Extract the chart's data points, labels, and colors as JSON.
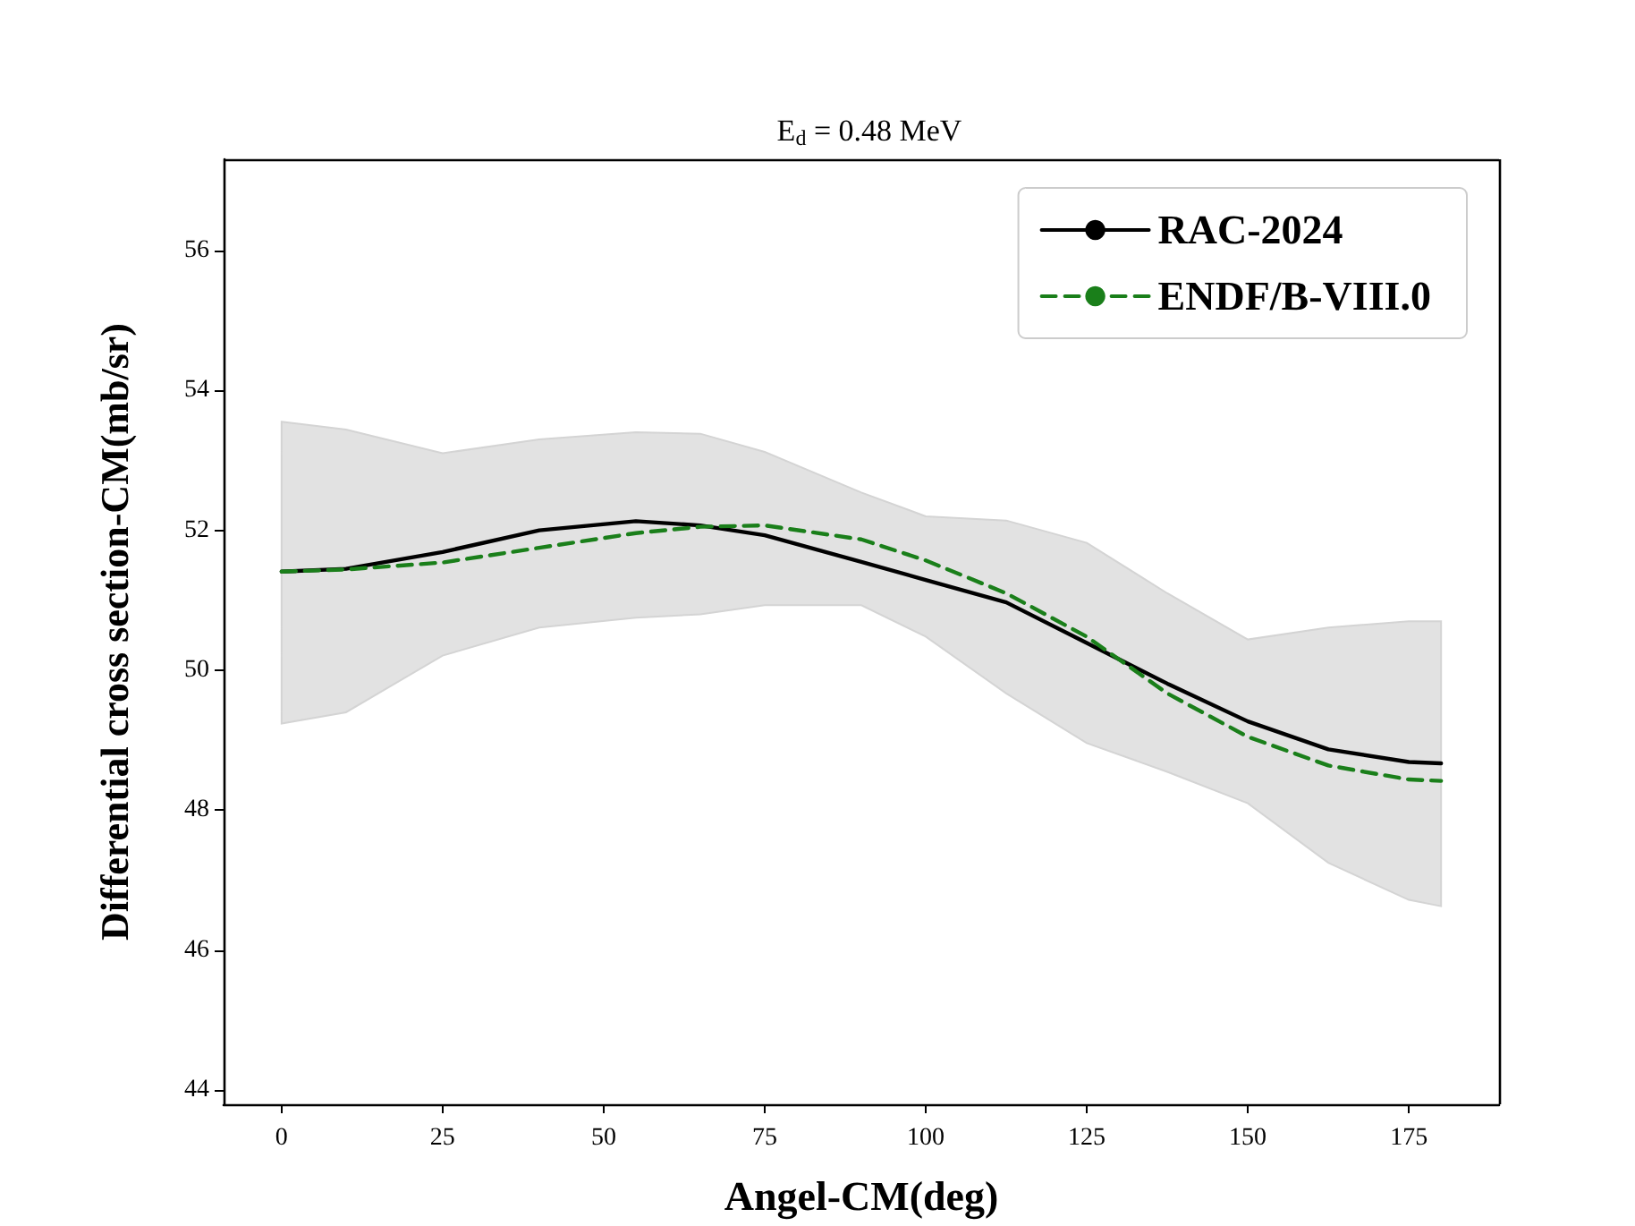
{
  "chart_data": {
    "type": "line",
    "title": "E$_{d}$ = 0.48 MeV",
    "xlabel": "Angel-CM(deg)",
    "ylabel": "Differential cross section-CM(mb/sr)",
    "x": [
      0,
      10,
      25,
      40,
      55,
      65,
      75,
      90,
      100,
      112.5,
      125,
      137.5,
      150,
      162.5,
      175,
      180
    ],
    "series": [
      {
        "name": "RAC-2024",
        "color": "#000000",
        "line_style": "solid",
        "values": [
          51.41,
          51.45,
          51.69,
          52.0,
          52.13,
          52.07,
          51.93,
          51.55,
          51.29,
          50.97,
          50.39,
          49.81,
          49.27,
          48.87,
          48.69,
          48.67
        ],
        "lower": [
          49.24,
          49.4,
          50.21,
          50.61,
          50.75,
          50.8,
          50.93,
          50.93,
          50.48,
          49.67,
          48.96,
          48.55,
          48.1,
          47.25,
          46.72,
          46.63
        ],
        "upper": [
          53.55,
          53.44,
          53.1,
          53.3,
          53.4,
          53.38,
          53.12,
          52.54,
          52.2,
          52.14,
          51.82,
          51.1,
          50.44,
          50.61,
          50.7,
          50.7
        ]
      },
      {
        "name": "ENDF/B-VIII.0",
        "color": "#1a7f1a",
        "line_style": "dashed",
        "values": [
          51.41,
          51.44,
          51.54,
          51.75,
          51.96,
          52.05,
          52.07,
          51.87,
          51.57,
          51.1,
          50.48,
          49.67,
          49.05,
          48.64,
          48.44,
          48.42
        ]
      }
    ],
    "xlim": [
      -9,
      189
    ],
    "xticks": [
      0,
      25,
      50,
      75,
      100,
      125,
      150,
      175
    ],
    "ylim": [
      43.8,
      57.3
    ],
    "yticks": [
      44,
      46,
      48,
      50,
      52,
      54,
      56
    ],
    "grid": false,
    "legend": "top right",
    "marker": "none"
  }
}
